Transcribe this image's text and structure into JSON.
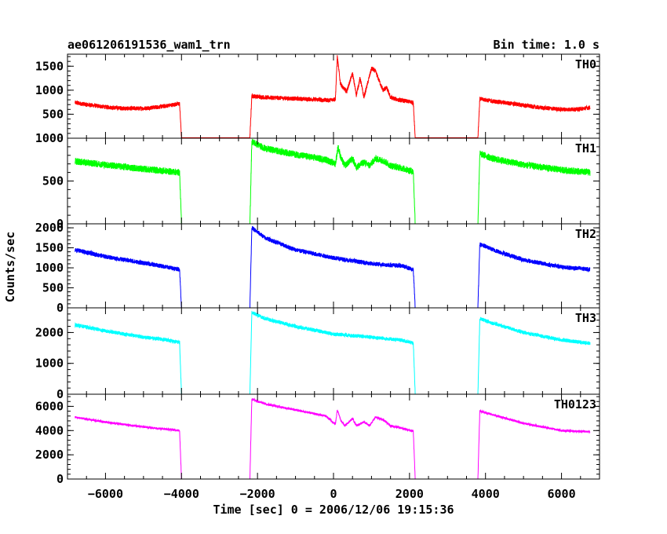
{
  "header": {
    "title": "ae061206191536_wam1_trn",
    "bin_time": "Bin time: 1.0 s"
  },
  "chart_data": {
    "type": "line",
    "title": "ae061206191536_wam1_trn",
    "subtitle": "Bin time: 1.0 s",
    "xlabel": "Time [sec] 0 = 2006/12/06 19:15:36",
    "ylabel": "Counts/sec",
    "xlim": [
      -7000,
      7000
    ],
    "x_ticks": [
      -6000,
      -4000,
      -2000,
      0,
      2000,
      4000,
      6000
    ],
    "x_tick_labels": [
      "−6000",
      "−4000",
      "−2000",
      "0",
      "2000",
      "4000",
      "6000"
    ],
    "grid": false,
    "panels": [
      {
        "name": "TH0",
        "color": "#ff0000",
        "ylim": [
          0,
          1750
        ],
        "y_ticks": [
          500,
          1000,
          1500
        ],
        "y_tick_labels": [
          "500",
          "1000",
          "1500"
        ],
        "noise": 45,
        "points": [
          [
            -6800,
            740
          ],
          [
            -6500,
            700
          ],
          [
            -6000,
            650
          ],
          [
            -5500,
            620
          ],
          [
            -5000,
            620
          ],
          [
            -4500,
            660
          ],
          [
            -4050,
            720
          ],
          [
            -4000,
            10
          ],
          [
            -2200,
            10
          ],
          [
            -2150,
            880
          ],
          [
            -1800,
            850
          ],
          [
            -1200,
            830
          ],
          [
            -600,
            810
          ],
          [
            -100,
            790
          ],
          [
            50,
            820
          ],
          [
            100,
            1700
          ],
          [
            180,
            1150
          ],
          [
            250,
            1050
          ],
          [
            350,
            980
          ],
          [
            500,
            1350
          ],
          [
            600,
            900
          ],
          [
            700,
            1250
          ],
          [
            800,
            850
          ],
          [
            900,
            1150
          ],
          [
            1000,
            1450
          ],
          [
            1100,
            1400
          ],
          [
            1200,
            1200
          ],
          [
            1300,
            1000
          ],
          [
            1400,
            1050
          ],
          [
            1500,
            850
          ],
          [
            1700,
            800
          ],
          [
            2000,
            760
          ],
          [
            2100,
            740
          ],
          [
            2150,
            10
          ],
          [
            3800,
            10
          ],
          [
            3850,
            820
          ],
          [
            4200,
            770
          ],
          [
            4800,
            710
          ],
          [
            5400,
            640
          ],
          [
            6000,
            600
          ],
          [
            6400,
            600
          ],
          [
            6750,
            640
          ]
        ]
      },
      {
        "name": "TH1",
        "color": "#00ff00",
        "ylim": [
          0,
          1000
        ],
        "y_ticks": [
          0,
          500,
          1000
        ],
        "y_tick_labels": [
          "0",
          "500",
          "1000"
        ],
        "noise": 40,
        "points": [
          [
            -6800,
            730
          ],
          [
            -6000,
            690
          ],
          [
            -5000,
            640
          ],
          [
            -4500,
            620
          ],
          [
            -4050,
            600
          ],
          [
            -4000,
            0
          ],
          [
            -2200,
            0
          ],
          [
            -2150,
            960
          ],
          [
            -1800,
            880
          ],
          [
            -1000,
            810
          ],
          [
            -200,
            750
          ],
          [
            50,
            700
          ],
          [
            120,
            900
          ],
          [
            200,
            760
          ],
          [
            300,
            680
          ],
          [
            500,
            760
          ],
          [
            600,
            660
          ],
          [
            800,
            720
          ],
          [
            950,
            680
          ],
          [
            1100,
            760
          ],
          [
            1300,
            740
          ],
          [
            1500,
            680
          ],
          [
            1800,
            650
          ],
          [
            2100,
            610
          ],
          [
            2150,
            0
          ],
          [
            3800,
            0
          ],
          [
            3850,
            820
          ],
          [
            4200,
            760
          ],
          [
            5000,
            690
          ],
          [
            6000,
            630
          ],
          [
            6750,
            600
          ]
        ]
      },
      {
        "name": "TH2",
        "color": "#0000ff",
        "ylim": [
          0,
          2100
        ],
        "y_ticks": [
          0,
          500,
          1000,
          1500,
          2000
        ],
        "y_tick_labels": [
          "0",
          "500",
          "1000",
          "1500",
          "2000"
        ],
        "noise": 55,
        "points": [
          [
            -6800,
            1450
          ],
          [
            -6000,
            1280
          ],
          [
            -5000,
            1120
          ],
          [
            -4500,
            1040
          ],
          [
            -4050,
            960
          ],
          [
            -4000,
            0
          ],
          [
            -2200,
            0
          ],
          [
            -2150,
            2000
          ],
          [
            -1800,
            1750
          ],
          [
            -1000,
            1450
          ],
          [
            0,
            1250
          ],
          [
            1000,
            1100
          ],
          [
            1800,
            1050
          ],
          [
            2100,
            950
          ],
          [
            2150,
            0
          ],
          [
            3800,
            0
          ],
          [
            3850,
            1600
          ],
          [
            4200,
            1450
          ],
          [
            5000,
            1200
          ],
          [
            6000,
            1020
          ],
          [
            6750,
            960
          ]
        ]
      },
      {
        "name": "TH3",
        "color": "#00ffff",
        "ylim": [
          0,
          2800
        ],
        "y_ticks": [
          0,
          1000,
          2000
        ],
        "y_tick_labels": [
          "0",
          "1000",
          "2000"
        ],
        "noise": 60,
        "points": [
          [
            -6800,
            2250
          ],
          [
            -6000,
            2050
          ],
          [
            -5000,
            1850
          ],
          [
            -4500,
            1780
          ],
          [
            -4050,
            1680
          ],
          [
            -4000,
            0
          ],
          [
            -2200,
            0
          ],
          [
            -2150,
            2650
          ],
          [
            -1800,
            2450
          ],
          [
            -1000,
            2200
          ],
          [
            0,
            1950
          ],
          [
            1000,
            1850
          ],
          [
            1800,
            1750
          ],
          [
            2100,
            1650
          ],
          [
            2150,
            0
          ],
          [
            3800,
            0
          ],
          [
            3850,
            2450
          ],
          [
            4200,
            2300
          ],
          [
            5000,
            2000
          ],
          [
            6000,
            1760
          ],
          [
            6750,
            1650
          ]
        ]
      },
      {
        "name": "TH0123",
        "color": "#ff00ff",
        "ylim": [
          0,
          7000
        ],
        "y_ticks": [
          0,
          2000,
          4000,
          6000
        ],
        "y_tick_labels": [
          "0",
          "2000",
          "4000",
          "6000"
        ],
        "noise": 90,
        "points": [
          [
            -6800,
            5100
          ],
          [
            -6000,
            4700
          ],
          [
            -5000,
            4300
          ],
          [
            -4500,
            4150
          ],
          [
            -4050,
            4000
          ],
          [
            -4000,
            0
          ],
          [
            -2200,
            0
          ],
          [
            -2150,
            6600
          ],
          [
            -1800,
            6200
          ],
          [
            -1000,
            5700
          ],
          [
            -200,
            5200
          ],
          [
            50,
            4500
          ],
          [
            100,
            5700
          ],
          [
            200,
            4800
          ],
          [
            300,
            4400
          ],
          [
            500,
            5000
          ],
          [
            600,
            4400
          ],
          [
            800,
            4700
          ],
          [
            950,
            4400
          ],
          [
            1100,
            5100
          ],
          [
            1300,
            4900
          ],
          [
            1500,
            4400
          ],
          [
            1800,
            4200
          ],
          [
            2100,
            3950
          ],
          [
            2150,
            0
          ],
          [
            3800,
            0
          ],
          [
            3850,
            5600
          ],
          [
            4200,
            5300
          ],
          [
            5000,
            4600
          ],
          [
            6000,
            4000
          ],
          [
            6750,
            3900
          ]
        ]
      }
    ]
  }
}
